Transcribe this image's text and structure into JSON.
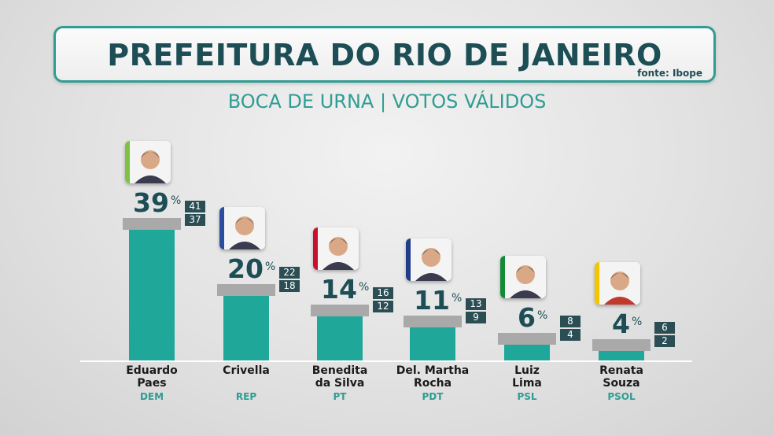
{
  "header": {
    "title": "PREFEITURA DO RIO DE JANEIRO",
    "source": "fonte: Ibope",
    "subtitle": "BOCA DE URNA | VOTOS VÁLIDOS"
  },
  "chart_data": {
    "type": "bar",
    "title": "PREFEITURA DO RIO DE JANEIRO",
    "subtitle": "BOCA DE URNA | VOTOS VÁLIDOS",
    "unit": "%",
    "ylim": [
      0,
      45
    ],
    "grid": false,
    "categories": [
      "Eduardo Paes",
      "Crivella",
      "Benedita da Silva",
      "Del. Martha Rocha",
      "Luiz Lima",
      "Renata Souza"
    ],
    "candidates": [
      {
        "name_lines": [
          "Eduardo",
          "Paes"
        ],
        "party": "DEM",
        "value": 39,
        "high": 41,
        "low": 37,
        "color": "#7dc242"
      },
      {
        "name_lines": [
          "Crivella",
          ""
        ],
        "party": "REP",
        "value": 20,
        "high": 22,
        "low": 18,
        "color": "#2b4ea0"
      },
      {
        "name_lines": [
          "Benedita",
          "da Silva"
        ],
        "party": "PT",
        "value": 14,
        "high": 16,
        "low": 12,
        "color": "#c8102e"
      },
      {
        "name_lines": [
          "Del. Martha",
          "Rocha"
        ],
        "party": "PDT",
        "value": 11,
        "high": 13,
        "low": 9,
        "color": "#1f3c88"
      },
      {
        "name_lines": [
          "Luiz",
          "Lima"
        ],
        "party": "PSL",
        "value": 6,
        "high": 8,
        "low": 4,
        "color": "#138a36"
      },
      {
        "name_lines": [
          "Renata",
          "Souza"
        ],
        "party": "PSOL",
        "value": 4,
        "high": 6,
        "low": 2,
        "color": "#f2c500"
      }
    ]
  },
  "colors": {
    "bar": "#1fa89a",
    "cap": "#a9a9a9",
    "text_dark": "#1d4e55",
    "accent": "#2f9d93"
  },
  "icons": [
    "candidate-photo-icon"
  ]
}
